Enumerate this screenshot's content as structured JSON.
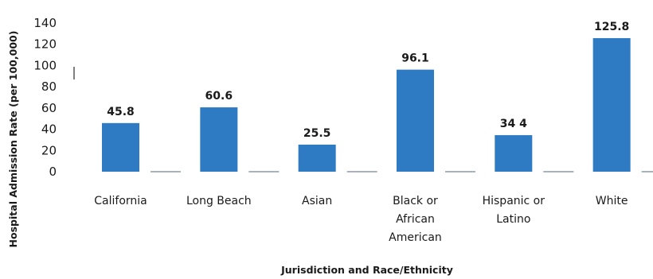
{
  "chart_data": {
    "type": "bar",
    "title": "",
    "xlabel": "Jurisdiction and Race/Ethnicity",
    "ylabel": "Hospital Admission Rate (per 100,000)",
    "ylim": [
      0,
      140
    ],
    "yticks": [
      "0",
      "20",
      "40",
      "60",
      "80",
      "100",
      "120",
      "140"
    ],
    "grid": false,
    "legend": "none",
    "categories": [
      [
        "California"
      ],
      [
        "Long Beach"
      ],
      [
        "Asian"
      ],
      [
        "Black or",
        "African",
        "American"
      ],
      [
        "Hispanic or",
        "Latino"
      ],
      [
        "White"
      ]
    ],
    "values": [
      45.8,
      60.6,
      25.5,
      96.1,
      34.4,
      125.8
    ],
    "value_labels": [
      "45.8",
      "60.6",
      "25.5",
      "96.1",
      "34 4",
      "125.8"
    ],
    "bar_color": "#2e7bc4",
    "baseline_color": "#8a9aa8"
  }
}
